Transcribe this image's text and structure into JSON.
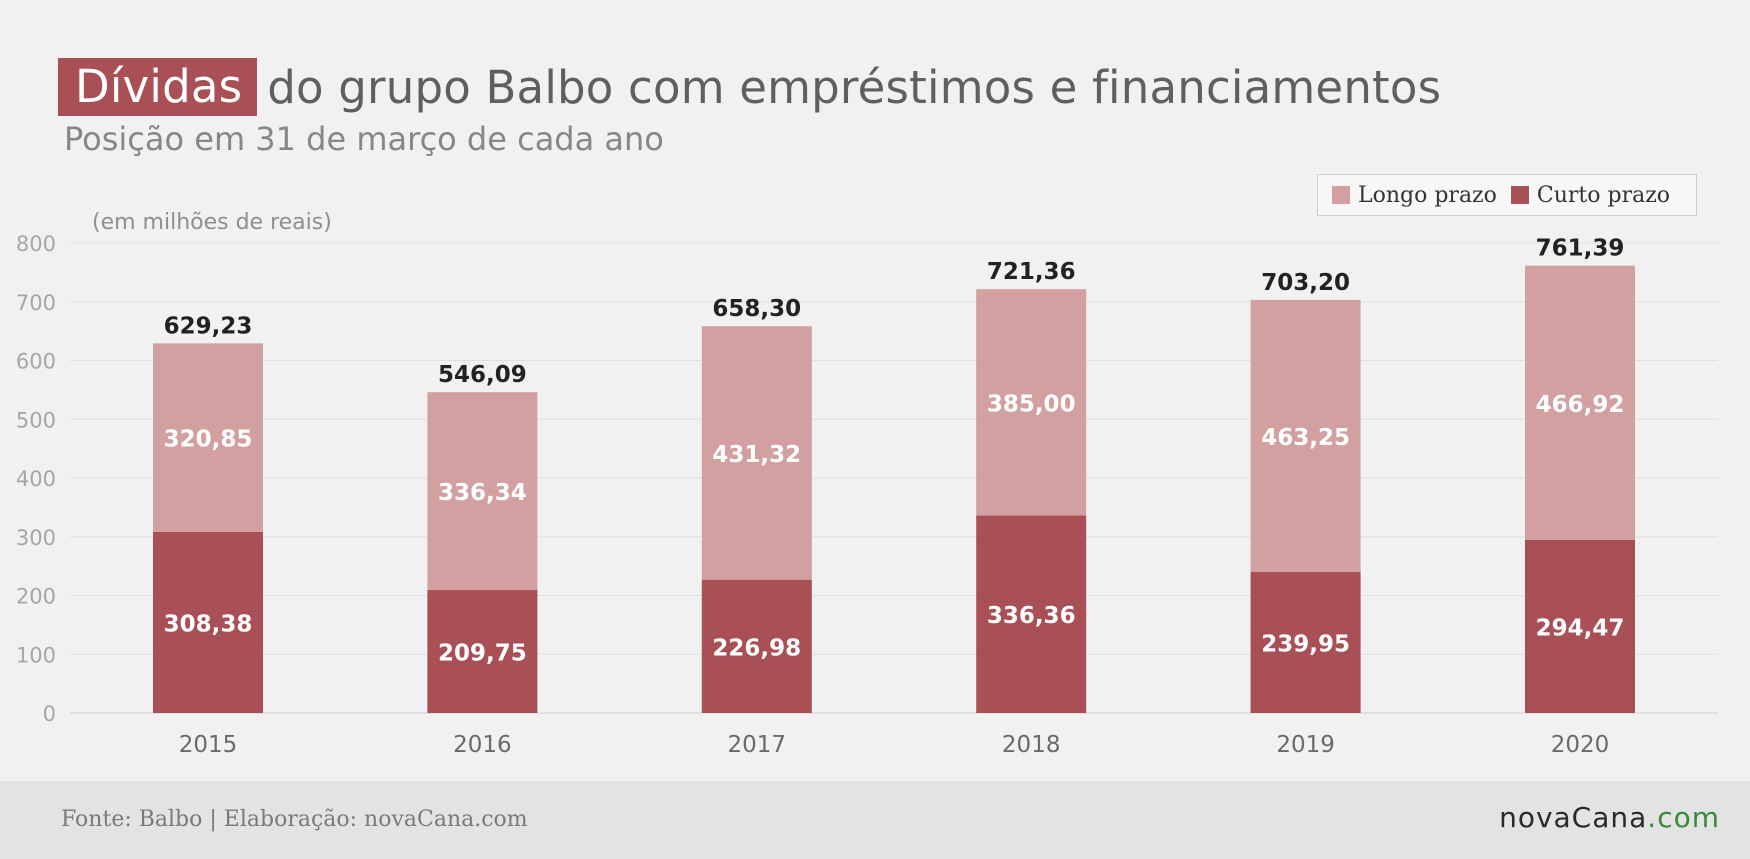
{
  "title": {
    "highlight": "Dívidas",
    "rest": "do grupo Balbo com empréstimos e financiamentos",
    "highlight_color": "#a85056"
  },
  "subtitle": "Posição em 31 de março de cada ano",
  "unit_label": "(em milhões de reais)",
  "legend": [
    {
      "label": "Longo prazo",
      "color": "#d3a0a1"
    },
    {
      "label": "Curto prazo",
      "color": "#a85056"
    }
  ],
  "footer": {
    "source": "Fonte: Balbo | Elaboração: novaCana.com",
    "brand_name": "novaCana",
    "brand_tld": ".com"
  },
  "chart_data": {
    "type": "bar",
    "stacked": true,
    "categories": [
      "2015",
      "2016",
      "2017",
      "2018",
      "2019",
      "2020"
    ],
    "series": [
      {
        "name": "Curto prazo",
        "color": "#a85056",
        "values": [
          308.38,
          209.75,
          226.98,
          336.36,
          239.95,
          294.47
        ],
        "labels": [
          "308,38",
          "209,75",
          "226,98",
          "336,36",
          "239,95",
          "294,47"
        ]
      },
      {
        "name": "Longo prazo",
        "color": "#d3a0a1",
        "values": [
          320.85,
          336.34,
          431.32,
          385.0,
          463.25,
          466.92
        ],
        "labels": [
          "320,85",
          "336,34",
          "431,32",
          "385,00",
          "463,25",
          "466,92"
        ]
      }
    ],
    "totals": [
      629.23,
      546.09,
      658.3,
      721.36,
      703.2,
      761.39
    ],
    "total_labels": [
      "629,23",
      "546,09",
      "658,30",
      "721,36",
      "703,20",
      "761,39"
    ],
    "ylim": [
      0,
      800
    ],
    "yticks": [
      0,
      100,
      200,
      300,
      400,
      500,
      600,
      700,
      800
    ],
    "grid": true,
    "legend_position": "top-right"
  }
}
